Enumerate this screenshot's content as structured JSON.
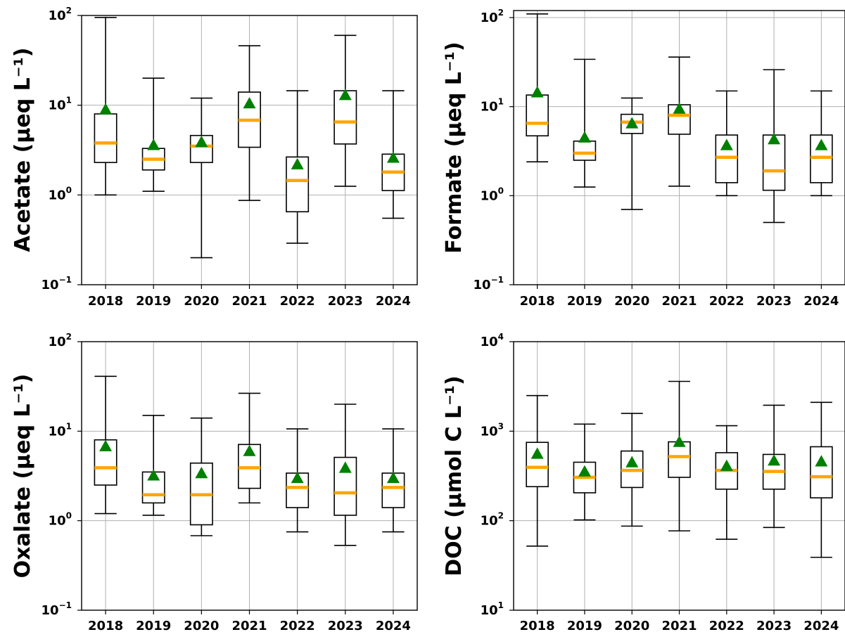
{
  "colors": {
    "median": "#FFA500",
    "mean": "#008000",
    "box": "#000000",
    "grid": "#b0b0b0"
  },
  "chart_data": [
    {
      "type": "box",
      "ylabel": "Acetate (μeq L⁻¹)",
      "yscale": "log",
      "ylim": [
        0.1,
        100
      ],
      "yticks": [
        {
          "base": "10",
          "exp": "−1"
        },
        {
          "base": "10",
          "exp": "0"
        },
        {
          "base": "10",
          "exp": "1"
        },
        {
          "base": "10",
          "exp": "2"
        }
      ],
      "categories": [
        "2018",
        "2019",
        "2020",
        "2021",
        "2022",
        "2023",
        "2024"
      ],
      "whisker_low": [
        1.0,
        1.1,
        0.2,
        0.87,
        0.29,
        1.25,
        0.55
      ],
      "q1": [
        2.3,
        1.9,
        2.3,
        3.4,
        0.65,
        3.7,
        1.12
      ],
      "median": [
        3.8,
        2.5,
        3.5,
        6.8,
        1.45,
        6.5,
        1.8
      ],
      "q3": [
        8.0,
        3.3,
        4.6,
        14.0,
        2.65,
        14.5,
        2.85
      ],
      "whisker_high": [
        95,
        20,
        12,
        46,
        14.5,
        60,
        14.5
      ],
      "mean": [
        9.0,
        3.6,
        3.9,
        10.5,
        2.2,
        13.0,
        2.6
      ],
      "grid": true
    },
    {
      "type": "box",
      "ylabel": "Formate (μeq L⁻¹)",
      "yscale": "log",
      "ylim": [
        0.1,
        120
      ],
      "yticks": [
        {
          "base": "10",
          "exp": "−1"
        },
        {
          "base": "10",
          "exp": "0"
        },
        {
          "base": "10",
          "exp": "1"
        },
        {
          "base": "10",
          "exp": "2"
        }
      ],
      "categories": [
        "2018",
        "2019",
        "2020",
        "2021",
        "2022",
        "2023",
        "2024"
      ],
      "whisker_low": [
        2.4,
        1.25,
        0.7,
        1.28,
        1.0,
        0.5,
        1.0
      ],
      "q1": [
        4.7,
        2.5,
        5.0,
        4.9,
        1.4,
        1.15,
        1.4
      ],
      "median": [
        6.5,
        3.0,
        6.7,
        8.0,
        2.7,
        1.9,
        2.7
      ],
      "q3": [
        13.5,
        4.1,
        8.2,
        10.5,
        4.8,
        4.8,
        4.8
      ],
      "whisker_high": [
        110,
        34,
        12.5,
        36,
        15,
        26,
        15
      ],
      "mean": [
        14.5,
        4.5,
        6.5,
        9.5,
        3.7,
        4.3,
        3.7
      ],
      "grid": true
    },
    {
      "type": "box",
      "ylabel": "Oxalate (μeq L⁻¹)",
      "yscale": "log",
      "ylim": [
        0.1,
        100
      ],
      "yticks": [
        {
          "base": "10",
          "exp": "−1"
        },
        {
          "base": "10",
          "exp": "0"
        },
        {
          "base": "10",
          "exp": "1"
        },
        {
          "base": "10",
          "exp": "2"
        }
      ],
      "categories": [
        "2018",
        "2019",
        "2020",
        "2021",
        "2022",
        "2023",
        "2024"
      ],
      "whisker_low": [
        1.2,
        1.15,
        0.68,
        1.58,
        0.75,
        0.53,
        0.75
      ],
      "q1": [
        2.5,
        1.58,
        0.9,
        2.3,
        1.4,
        1.15,
        1.4
      ],
      "median": [
        3.9,
        1.95,
        1.95,
        3.9,
        2.35,
        2.05,
        2.35
      ],
      "q3": [
        8.0,
        3.5,
        4.4,
        7.1,
        3.4,
        5.1,
        3.4
      ],
      "whisker_high": [
        41,
        15,
        14,
        26.5,
        10.6,
        20,
        10.6
      ],
      "mean": [
        6.8,
        3.2,
        3.4,
        6.0,
        3.0,
        3.9,
        3.0
      ],
      "grid": true
    },
    {
      "type": "box",
      "ylabel": "DOC (μmol C L⁻¹)",
      "yscale": "log",
      "ylim": [
        10,
        10000
      ],
      "yticks": [
        {
          "base": "10",
          "exp": "1"
        },
        {
          "base": "10",
          "exp": "2"
        },
        {
          "base": "10",
          "exp": "3"
        },
        {
          "base": "10",
          "exp": "4"
        }
      ],
      "categories": [
        "2018",
        "2019",
        "2020",
        "2021",
        "2022",
        "2023",
        "2024"
      ],
      "whisker_low": [
        52,
        102,
        87,
        77,
        62,
        84,
        39
      ],
      "q1": [
        240,
        205,
        235,
        305,
        225,
        225,
        180
      ],
      "median": [
        395,
        305,
        365,
        520,
        365,
        355,
        310
      ],
      "q3": [
        750,
        450,
        600,
        760,
        575,
        550,
        670
      ],
      "whisker_high": [
        2500,
        1200,
        1580,
        3600,
        1150,
        1950,
        2100
      ],
      "mean": [
        560,
        355,
        450,
        760,
        410,
        470,
        460
      ],
      "grid": true
    }
  ]
}
